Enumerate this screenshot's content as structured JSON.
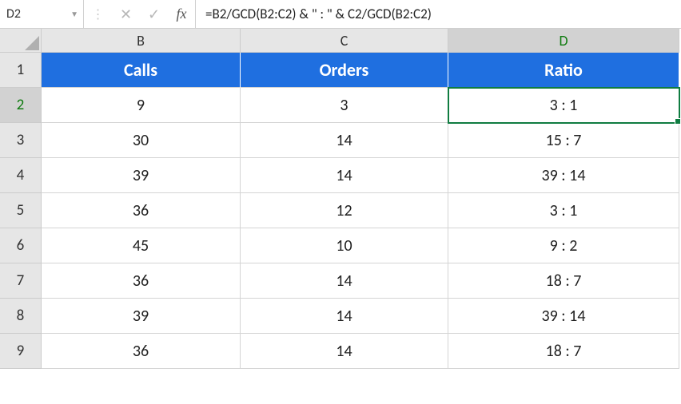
{
  "nameBox": "D2",
  "formula": "=B2/GCD(B2:C2) & \" : \" & C2/GCD(B2:C2)",
  "fxLabel": "fx",
  "columns": [
    {
      "letter": "B",
      "header": "Calls"
    },
    {
      "letter": "C",
      "header": "Orders"
    },
    {
      "letter": "D",
      "header": "Ratio"
    }
  ],
  "headerStyle": {
    "background": "#1f6fe0",
    "color": "#ffffff"
  },
  "activeColIndex": 2,
  "activeRowIndex": 1,
  "rows": [
    {
      "num": "1",
      "cells": [
        "Calls",
        "Orders",
        "Ratio"
      ],
      "isHeader": true
    },
    {
      "num": "2",
      "cells": [
        "9",
        "3",
        "3 : 1"
      ]
    },
    {
      "num": "3",
      "cells": [
        "30",
        "14",
        "15 : 7"
      ]
    },
    {
      "num": "4",
      "cells": [
        "39",
        "14",
        "39 : 14"
      ]
    },
    {
      "num": "5",
      "cells": [
        "36",
        "12",
        "3 : 1"
      ]
    },
    {
      "num": "6",
      "cells": [
        "45",
        "10",
        "9 : 2"
      ]
    },
    {
      "num": "7",
      "cells": [
        "36",
        "14",
        "18 : 7"
      ]
    },
    {
      "num": "8",
      "cells": [
        "39",
        "14",
        "39 : 14"
      ]
    },
    {
      "num": "9",
      "cells": [
        "36",
        "14",
        "18 : 7"
      ]
    }
  ],
  "selectedCell": {
    "row": 1,
    "col": 2
  }
}
